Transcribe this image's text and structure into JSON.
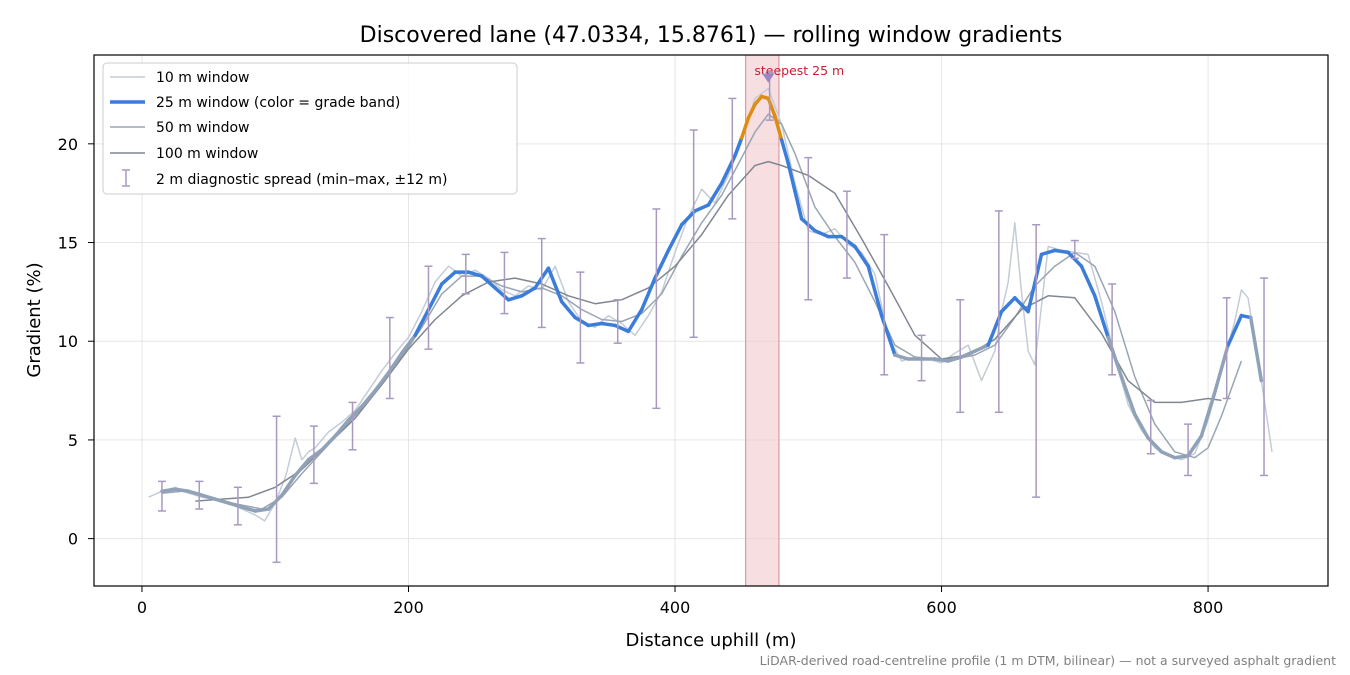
{
  "chart_data": {
    "type": "line",
    "title": "Discovered lane (47.0334, 15.8761) — rolling window gradients",
    "xlabel": "Distance uphill (m)",
    "ylabel": "Gradient (%)",
    "xlim": [
      -36,
      890
    ],
    "ylim": [
      -2.4,
      24.5
    ],
    "xticks": [
      0,
      200,
      400,
      600,
      800
    ],
    "yticks": [
      0,
      5,
      10,
      15,
      20
    ],
    "grid": true,
    "legend_position": "top-left",
    "footnote": "LiDAR-derived road-centreline profile (1 m DTM, bilinear) — not a surveyed asphalt gradient",
    "highlight_span": {
      "x": [
        453,
        478
      ],
      "label": "steepest 25 m",
      "peak_x": 470,
      "peak_y": 23.4
    },
    "colors": {
      "w10": "#c4ccd6",
      "w25": "#3b7dd8",
      "w25_steep": "#e08c10",
      "w25_mild": "#8fa2b8",
      "w50": "#9aa5b2",
      "w100": "#808792",
      "spread": "#a899c1",
      "span": "#f2c8cd",
      "annotation": "#c81e32",
      "peak_marker": "#9d84c4"
    },
    "legend": [
      "10 m window",
      "25 m window (color = grade band)",
      "50 m window",
      "100 m window",
      "2 m diagnostic spread (min–max, ±12 m)"
    ],
    "series": [
      {
        "name": "10 m window",
        "x": [
          5,
          15,
          25,
          35,
          45,
          55,
          65,
          75,
          85,
          92,
          100,
          108,
          115,
          120,
          125,
          130,
          140,
          150,
          160,
          170,
          180,
          190,
          200,
          210,
          220,
          230,
          240,
          250,
          260,
          270,
          280,
          290,
          300,
          310,
          320,
          330,
          340,
          350,
          360,
          370,
          380,
          390,
          400,
          410,
          420,
          430,
          440,
          450,
          460,
          470,
          480,
          490,
          500,
          510,
          520,
          530,
          540,
          550,
          560,
          570,
          580,
          590,
          600,
          610,
          620,
          630,
          640,
          645,
          650,
          655,
          660,
          665,
          670,
          680,
          690,
          700,
          710,
          720,
          730,
          740,
          750,
          760,
          770,
          780,
          790,
          800,
          810,
          820,
          825,
          830,
          840,
          848
        ],
        "y": [
          2.1,
          2.4,
          2.6,
          2.3,
          2.1,
          2.0,
          1.8,
          1.5,
          1.2,
          0.9,
          1.8,
          3.2,
          5.1,
          4.0,
          4.4,
          4.6,
          5.4,
          5.9,
          6.5,
          7.5,
          8.5,
          9.4,
          10.2,
          11.5,
          13.0,
          13.8,
          13.3,
          13.6,
          13.2,
          12.6,
          12.3,
          12.8,
          12.6,
          13.8,
          12.0,
          11.0,
          10.7,
          11.3,
          10.9,
          10.3,
          11.3,
          12.5,
          14.5,
          16.3,
          17.7,
          17.0,
          18.4,
          20.1,
          22.3,
          22.8,
          21.0,
          18.0,
          15.6,
          15.4,
          15.7,
          14.9,
          14.5,
          13.4,
          10.2,
          9.0,
          9.2,
          9.1,
          8.9,
          9.4,
          9.8,
          8.0,
          9.5,
          11.5,
          13.0,
          16.0,
          12.5,
          9.5,
          8.8,
          14.8,
          14.6,
          14.5,
          14.4,
          12.0,
          9.2,
          6.8,
          5.5,
          4.6,
          4.2,
          4.0,
          4.3,
          6.0,
          8.5,
          11.0,
          12.6,
          12.2,
          8.0,
          4.4
        ]
      },
      {
        "name": "25 m window (color = grade band)",
        "x": [
          15,
          25,
          35,
          45,
          55,
          65,
          75,
          85,
          95,
          105,
          115,
          125,
          135,
          145,
          155,
          165,
          175,
          185,
          195,
          205,
          215,
          225,
          235,
          245,
          255,
          265,
          275,
          285,
          295,
          305,
          315,
          325,
          335,
          345,
          355,
          365,
          375,
          385,
          395,
          405,
          415,
          425,
          435,
          445,
          450,
          455,
          460,
          465,
          470,
          475,
          480,
          485,
          490,
          495,
          505,
          515,
          525,
          535,
          545,
          555,
          565,
          575,
          585,
          595,
          605,
          615,
          625,
          635,
          645,
          655,
          665,
          675,
          685,
          695,
          705,
          715,
          725,
          735,
          745,
          755,
          765,
          775,
          785,
          795,
          805,
          815,
          825,
          832,
          840
        ],
        "y": [
          2.4,
          2.5,
          2.4,
          2.2,
          2.0,
          1.8,
          1.6,
          1.4,
          1.5,
          2.2,
          3.2,
          4.0,
          4.5,
          5.2,
          6.0,
          6.7,
          7.5,
          8.4,
          9.4,
          10.3,
          11.6,
          12.9,
          13.5,
          13.5,
          13.3,
          12.7,
          12.1,
          12.3,
          12.7,
          13.7,
          12.0,
          11.2,
          10.8,
          10.9,
          10.8,
          10.5,
          11.6,
          13.2,
          14.6,
          15.9,
          16.6,
          16.9,
          18.0,
          19.4,
          20.3,
          21.3,
          22.0,
          22.4,
          22.3,
          21.4,
          20.2,
          19.0,
          17.6,
          16.2,
          15.6,
          15.3,
          15.3,
          14.8,
          13.8,
          11.3,
          9.3,
          9.1,
          9.1,
          9.1,
          9.0,
          9.2,
          9.5,
          9.8,
          11.5,
          12.2,
          11.5,
          14.4,
          14.6,
          14.5,
          13.8,
          12.3,
          10.2,
          8.2,
          6.3,
          5.1,
          4.4,
          4.1,
          4.2,
          5.2,
          7.4,
          9.8,
          11.3,
          11.2,
          8.0
        ]
      },
      {
        "name": "50 m window",
        "x": [
          15,
          30,
          45,
          60,
          75,
          90,
          105,
          120,
          135,
          150,
          165,
          180,
          195,
          210,
          225,
          240,
          255,
          270,
          285,
          300,
          315,
          330,
          345,
          360,
          375,
          390,
          405,
          420,
          435,
          450,
          460,
          470,
          480,
          490,
          505,
          520,
          535,
          550,
          565,
          580,
          595,
          610,
          625,
          640,
          655,
          670,
          685,
          700,
          715,
          730,
          745,
          760,
          775,
          790,
          800,
          810,
          825
        ],
        "y": [
          2.3,
          2.4,
          2.2,
          1.9,
          1.7,
          1.5,
          2.1,
          3.3,
          4.4,
          5.5,
          6.6,
          7.8,
          9.2,
          10.7,
          12.4,
          13.3,
          13.3,
          12.8,
          12.5,
          12.7,
          12.3,
          11.6,
          11.1,
          11.0,
          11.4,
          12.4,
          14.3,
          16.0,
          17.4,
          19.3,
          20.6,
          21.5,
          21.0,
          19.5,
          16.8,
          15.3,
          14.0,
          12.0,
          9.8,
          9.2,
          9.1,
          9.1,
          9.3,
          9.8,
          11.2,
          12.8,
          13.8,
          14.5,
          13.8,
          11.5,
          8.2,
          5.8,
          4.4,
          4.1,
          4.6,
          6.2,
          9.0
        ]
      },
      {
        "name": "100 m window",
        "x": [
          40,
          60,
          80,
          100,
          120,
          140,
          160,
          180,
          200,
          220,
          240,
          260,
          280,
          300,
          320,
          340,
          360,
          380,
          400,
          420,
          440,
          460,
          470,
          480,
          500,
          520,
          540,
          560,
          580,
          600,
          620,
          640,
          660,
          680,
          700,
          720,
          740,
          760,
          780,
          800,
          810
        ],
        "y": [
          1.9,
          2.0,
          2.1,
          2.6,
          3.5,
          4.8,
          6.1,
          7.8,
          9.6,
          11.1,
          12.3,
          13.0,
          13.2,
          12.9,
          12.3,
          11.9,
          12.1,
          12.7,
          13.8,
          15.4,
          17.4,
          18.9,
          19.1,
          18.9,
          18.4,
          17.5,
          15.2,
          12.8,
          10.3,
          9.1,
          9.3,
          10.1,
          11.6,
          12.3,
          12.2,
          10.4,
          8.0,
          6.9,
          6.9,
          7.1,
          7.0
        ]
      },
      {
        "name": "2 m diagnostic spread (min–max, ±12 m)",
        "x": [
          15,
          43,
          72,
          101,
          129,
          158,
          186,
          215,
          243,
          272,
          300,
          329,
          357,
          386,
          414,
          443,
          471,
          500,
          529,
          557,
          585,
          614,
          643,
          671,
          700,
          728,
          757,
          785,
          814,
          842
        ],
        "low": [
          1.4,
          1.5,
          0.7,
          -1.2,
          2.8,
          4.5,
          7.1,
          9.6,
          12.4,
          11.4,
          10.7,
          8.9,
          9.9,
          6.6,
          10.2,
          16.2,
          21.2,
          12.1,
          13.2,
          8.3,
          8.0,
          6.4,
          6.4,
          2.1,
          14.2,
          8.3,
          4.3,
          3.2,
          7.1,
          3.2
        ],
        "high": [
          2.9,
          2.9,
          2.6,
          6.2,
          5.7,
          6.9,
          11.2,
          13.8,
          14.4,
          14.5,
          15.2,
          13.5,
          12.1,
          16.7,
          20.7,
          22.3,
          23.6,
          19.3,
          17.6,
          15.4,
          10.3,
          12.1,
          16.6,
          15.9,
          15.1,
          12.9,
          7.0,
          5.8,
          12.2,
          13.2
        ]
      }
    ]
  }
}
